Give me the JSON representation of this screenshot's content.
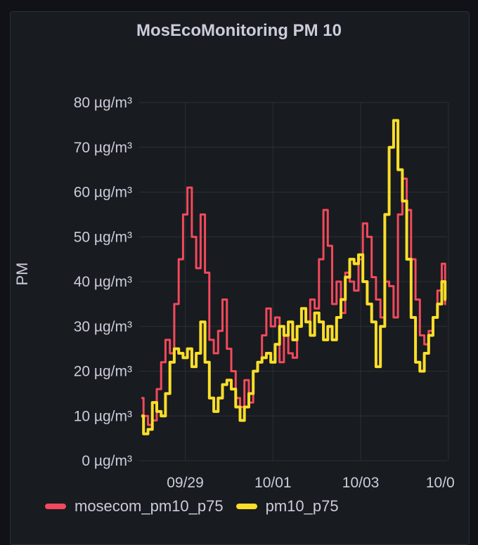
{
  "panel": {
    "title": "MosEcoMonitoring PM 10"
  },
  "chart_data": {
    "type": "line",
    "title": "MosEcoMonitoring PM 10",
    "ylabel": "PM",
    "xlabel": "",
    "ylim": [
      0,
      80
    ],
    "yticks": [
      "0 µg/m³",
      "10 µg/m³",
      "20 µg/m³",
      "30 µg/m³",
      "40 µg/m³",
      "50 µg/m³",
      "60 µg/m³",
      "70 µg/m³",
      "80 µg/m³"
    ],
    "xticks": [
      "09/29",
      "10/01",
      "10/03",
      "10/0"
    ],
    "x_tick_positions": [
      1.0,
      3.0,
      5.0,
      7.0
    ],
    "xlim": [
      -0.05,
      6.97
    ],
    "grid": true,
    "legend_position": "bottom-left",
    "series": [
      {
        "name": "mosecom_pm10_p75",
        "color": "#f2495c",
        "x": [
          0.0,
          0.1,
          0.2,
          0.3,
          0.4,
          0.5,
          0.6,
          0.7,
          0.8,
          0.9,
          1.0,
          1.1,
          1.2,
          1.3,
          1.4,
          1.5,
          1.6,
          1.7,
          1.8,
          1.9,
          2.0,
          2.1,
          2.2,
          2.3,
          2.4,
          2.5,
          2.6,
          2.7,
          2.8,
          2.9,
          3.0,
          3.1,
          3.2,
          3.3,
          3.4,
          3.5,
          3.6,
          3.7,
          3.8,
          3.9,
          4.0,
          4.1,
          4.2,
          4.3,
          4.4,
          4.5,
          4.6,
          4.7,
          4.8,
          4.9,
          5.0,
          5.1,
          5.2,
          5.3,
          5.4,
          5.5,
          5.6,
          5.7,
          5.8,
          5.9,
          6.0,
          6.1,
          6.2,
          6.3,
          6.4,
          6.5,
          6.6,
          6.7,
          6.8,
          6.9,
          6.95
        ],
        "y": [
          14,
          10,
          8,
          9,
          16,
          22,
          27,
          24,
          35,
          45,
          55,
          61,
          50,
          43,
          55,
          42,
          27,
          24,
          29,
          36,
          25,
          20,
          14,
          12,
          18,
          13,
          20,
          22,
          28,
          34,
          30,
          32,
          22,
          28,
          24,
          23,
          30,
          34,
          31,
          36,
          34,
          45,
          56,
          48,
          35,
          40,
          33,
          42,
          40,
          38,
          45,
          53,
          50,
          41,
          36,
          32,
          40,
          39,
          32,
          55,
          63,
          56,
          45,
          36,
          28,
          26,
          29,
          32,
          38,
          44,
          35
        ]
      },
      {
        "name": "pm10_p75",
        "color": "#fade2a",
        "x": [
          0.0,
          0.1,
          0.2,
          0.3,
          0.4,
          0.5,
          0.6,
          0.7,
          0.8,
          0.9,
          1.0,
          1.1,
          1.2,
          1.3,
          1.4,
          1.5,
          1.6,
          1.7,
          1.8,
          1.9,
          2.0,
          2.1,
          2.2,
          2.3,
          2.4,
          2.5,
          2.6,
          2.7,
          2.8,
          2.9,
          3.0,
          3.1,
          3.2,
          3.3,
          3.4,
          3.5,
          3.6,
          3.7,
          3.8,
          3.9,
          4.0,
          4.1,
          4.2,
          4.3,
          4.4,
          4.5,
          4.6,
          4.7,
          4.8,
          4.9,
          5.0,
          5.1,
          5.2,
          5.3,
          5.4,
          5.5,
          5.6,
          5.7,
          5.8,
          5.9,
          6.0,
          6.1,
          6.2,
          6.3,
          6.4,
          6.5,
          6.6,
          6.7,
          6.8,
          6.9,
          6.95
        ],
        "y": [
          10,
          6,
          7,
          13,
          11,
          10,
          15,
          22,
          25,
          24,
          23,
          25,
          21,
          24,
          31,
          22,
          14,
          11,
          14,
          17,
          18,
          16,
          12,
          9,
          12,
          15,
          20,
          22,
          23,
          24,
          22,
          26,
          30,
          28,
          31,
          27,
          30,
          34,
          31,
          28,
          33,
          31,
          27,
          30,
          27,
          32,
          36,
          41,
          45,
          44,
          46,
          40,
          35,
          31,
          21,
          30,
          55,
          70,
          76,
          65,
          58,
          45,
          32,
          22,
          20,
          24,
          28,
          32,
          35,
          40,
          36
        ]
      }
    ]
  }
}
